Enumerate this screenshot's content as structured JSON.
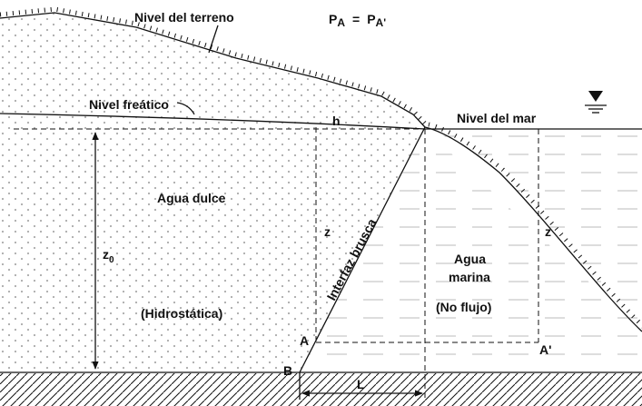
{
  "labels": {
    "ground": "Nivel del terreno",
    "water_table": "Nivel freático",
    "sea_level": "Nivel del mar",
    "h": "h",
    "fresh_water": "Agua dulce",
    "hydrostatic": "(Hidrostática)",
    "z_left": "z",
    "z0": {
      "main": "z",
      "sub": "0"
    },
    "interface": "Interfaz brusca",
    "sea_water": [
      "Agua",
      "marina"
    ],
    "no_flow": "(No flujo)",
    "z_right": "z",
    "A": "A",
    "A_prime": "A'",
    "B": "B",
    "L": "L"
  },
  "equation": {
    "left": "P",
    "left_sub": "A",
    "op": "=",
    "right": "P",
    "right_sub": "A'"
  }
}
